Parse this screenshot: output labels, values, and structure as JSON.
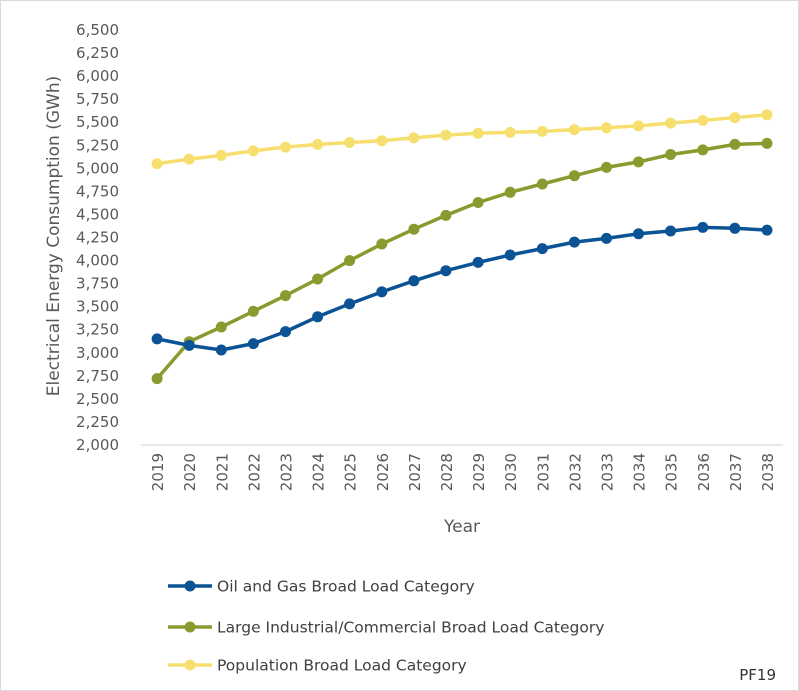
{
  "chart_data": {
    "type": "line",
    "xlabel": "Year",
    "ylabel": "Electrical Energy Consumption (GWh)",
    "ylim": [
      2000,
      6500
    ],
    "ytick_step": 250,
    "grid": false,
    "legend_position": "bottom",
    "x": [
      "2019",
      "2020",
      "2021",
      "2022",
      "2023",
      "2024",
      "2025",
      "2026",
      "2027",
      "2028",
      "2029",
      "2030",
      "2031",
      "2032",
      "2033",
      "2034",
      "2035",
      "2036",
      "2037",
      "2038"
    ],
    "series": [
      {
        "name": "Oil and Gas Broad Load Category",
        "color": "#0b5394",
        "values": [
          3150,
          3080,
          3030,
          3100,
          3230,
          3390,
          3530,
          3660,
          3780,
          3890,
          3980,
          4060,
          4130,
          4200,
          4240,
          4290,
          4320,
          4360,
          4350,
          4330
        ]
      },
      {
        "name": "Large Industrial/Commercial Broad Load Category",
        "color": "#8a9a2e",
        "values": [
          2720,
          3120,
          3280,
          3450,
          3620,
          3800,
          4000,
          4180,
          4340,
          4490,
          4630,
          4740,
          4830,
          4920,
          5010,
          5070,
          5150,
          5200,
          5260,
          5270
        ]
      },
      {
        "name": "Population Broad Load Category",
        "color": "#f7df6f",
        "values": [
          5050,
          5100,
          5140,
          5190,
          5230,
          5260,
          5280,
          5300,
          5330,
          5360,
          5380,
          5390,
          5400,
          5420,
          5440,
          5460,
          5490,
          5520,
          5550,
          5580
        ]
      }
    ]
  },
  "corner_label": "PF19"
}
